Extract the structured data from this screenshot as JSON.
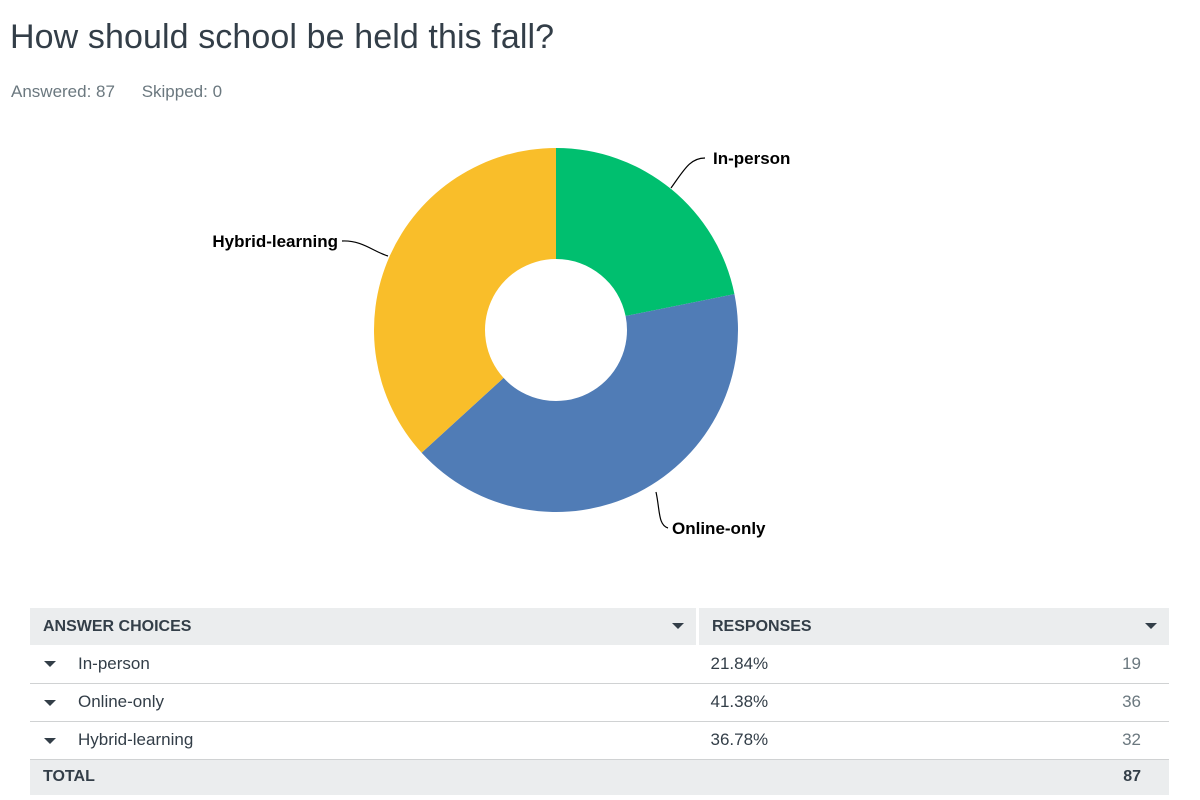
{
  "question": {
    "title": "How should school be held this fall?",
    "answered": "Answered: 87",
    "skipped": "Skipped: 0"
  },
  "colors": {
    "in_person": "#00bf6f",
    "online_only": "#507cb6",
    "hybrid_learning": "#f9be2a"
  },
  "chart_data": {
    "type": "pie",
    "categories": [
      "In-person",
      "Online-only",
      "Hybrid-learning"
    ],
    "values": [
      21.84,
      41.38,
      36.78
    ],
    "colors": [
      "#00bf6f",
      "#507cb6",
      "#f9be2a"
    ],
    "donut": true,
    "legend": "none"
  },
  "table": {
    "headers": {
      "choices": "ANSWER CHOICES",
      "responses": "RESPONSES"
    },
    "rows": [
      {
        "choice": "In-person",
        "percent": "21.84%",
        "count": "19"
      },
      {
        "choice": "Online-only",
        "percent": "41.38%",
        "count": "36"
      },
      {
        "choice": "Hybrid-learning",
        "percent": "36.78%",
        "count": "32"
      }
    ],
    "total_label": "TOTAL",
    "total_count": "87"
  }
}
